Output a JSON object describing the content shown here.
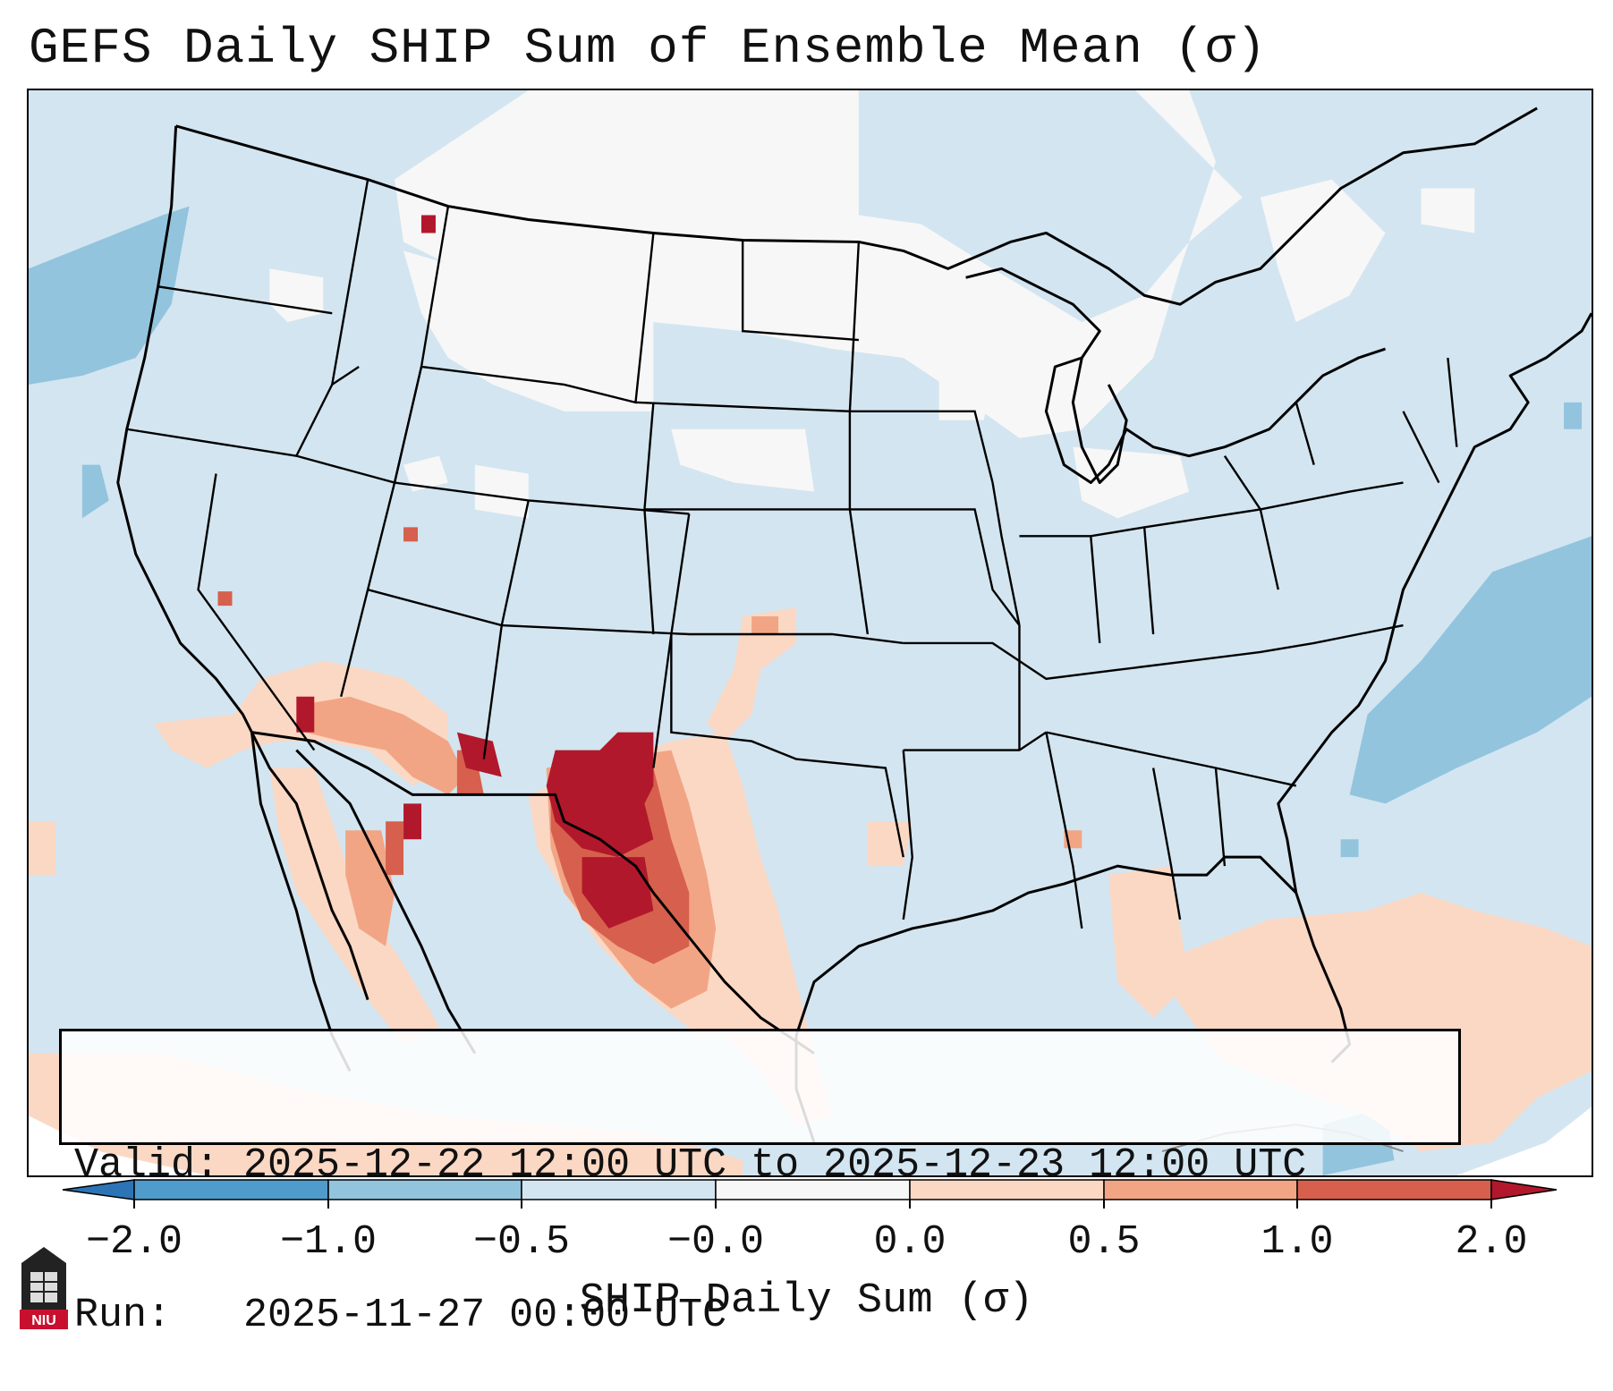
{
  "title": "GEFS Daily SHIP Sum of Ensemble Mean (σ)",
  "info": {
    "valid_line": "Valid: 2025-12-22 12:00 UTC to 2025-12-23 12:00 UTC",
    "run_line": "Run:   2025-11-27 00:00 UTC"
  },
  "colorbar": {
    "label": "SHIP Daily Sum (σ)",
    "ticks": [
      "−2.0",
      "−1.0",
      "−0.5",
      "−0.0",
      "0.0",
      "0.5",
      "1.0",
      "2.0"
    ],
    "colors": {
      "extend_low": "#2c74b5",
      "below_m1": "#4f9bcb",
      "m1_m05": "#92c4de",
      "m05_0": "#d3e5f0",
      "near_zero": "#f7f7f7",
      "p0_p05": "#fbd8c4",
      "p05_p1": "#f2a585",
      "p1_p2": "#d6604d",
      "extend_high": "#b2182b"
    }
  },
  "logo": {
    "text": "NIU",
    "name": "Northern Illinois University"
  }
}
